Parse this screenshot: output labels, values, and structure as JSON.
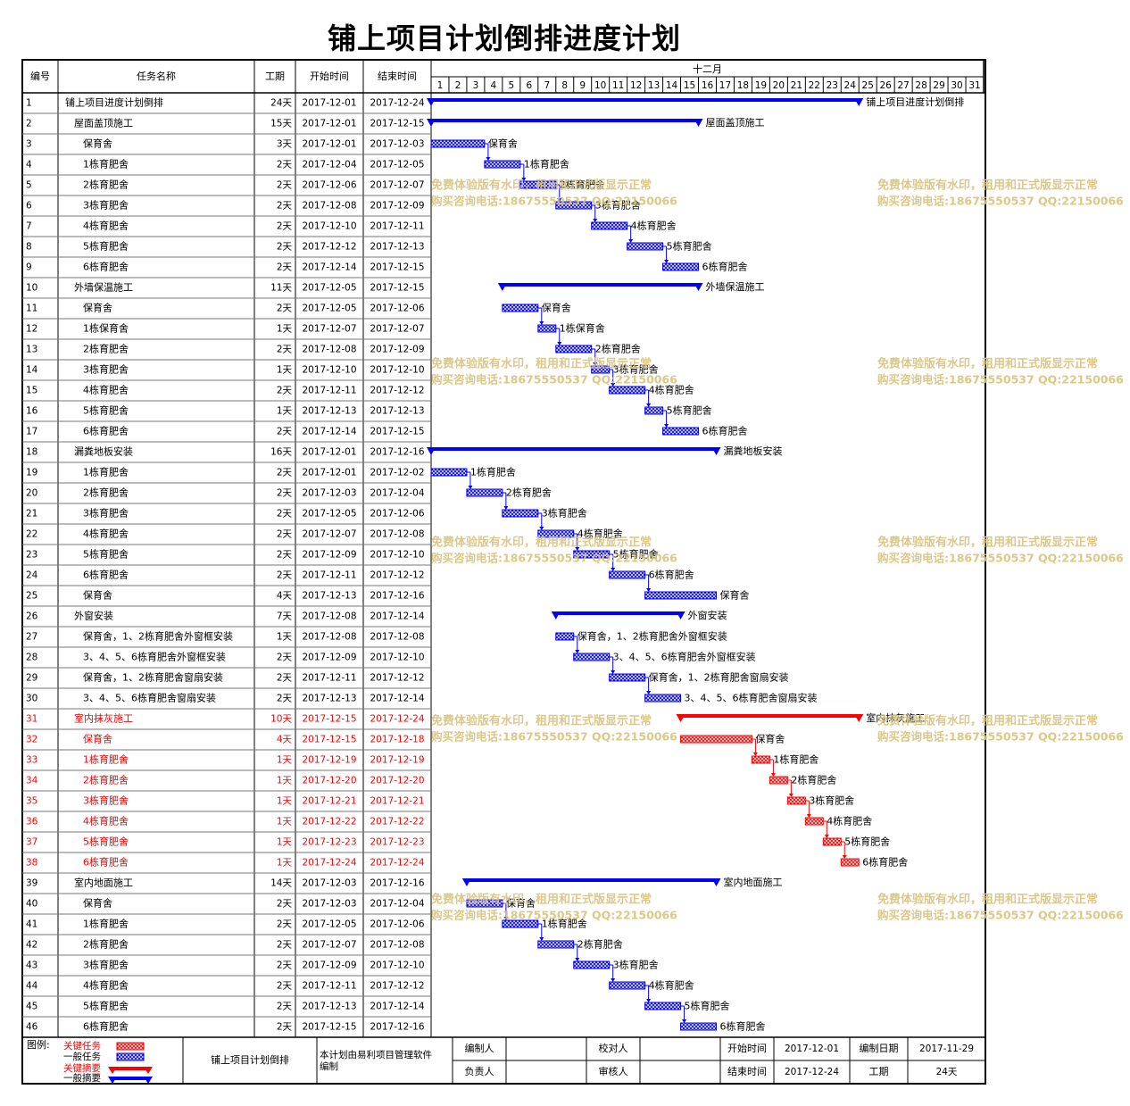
{
  "title": "铺上项目计划倒排进度计划",
  "columns": {
    "id": "编号",
    "name": "任务名称",
    "dur": "工期",
    "start": "开始时间",
    "end": "结束时间"
  },
  "month": "十二月",
  "days": [
    "1",
    "2",
    "3",
    "4",
    "5",
    "6",
    "7",
    "8",
    "9",
    "10",
    "11",
    "12",
    "13",
    "14",
    "15",
    "16",
    "17",
    "18",
    "19",
    "20",
    "21",
    "22",
    "23",
    "24",
    "25",
    "26",
    "27",
    "28",
    "29",
    "30",
    "31"
  ],
  "colors": {
    "normal": "#0000ff",
    "critical": "#ff0000",
    "text_red": "#ff0000",
    "watermark": "#d9c27a"
  },
  "watermark": {
    "line1": "免费体验版有水印，租用和正式版显示正常",
    "line2": "购买咨询电话:18675550537 QQ:22150066"
  },
  "chart_data": {
    "type": "gantt",
    "tasks": [
      {
        "id": "1",
        "name": "铺上项目进度计划倒排",
        "indent": 0,
        "dur": "24天",
        "start": "2017-12-01",
        "end": "2017-12-24",
        "summary": true,
        "critical": false,
        "label": "铺上项目进度计划倒排"
      },
      {
        "id": "2",
        "name": "屋面盖顶施工",
        "indent": 1,
        "dur": "15天",
        "start": "2017-12-01",
        "end": "2017-12-15",
        "summary": true,
        "critical": false,
        "label": "屋面盖顶施工"
      },
      {
        "id": "3",
        "name": "保育舍",
        "indent": 2,
        "dur": "3天",
        "start": "2017-12-01",
        "end": "2017-12-03",
        "summary": false,
        "critical": false,
        "label": "保育舍"
      },
      {
        "id": "4",
        "name": "1栋育肥舍",
        "indent": 2,
        "dur": "2天",
        "start": "2017-12-04",
        "end": "2017-12-05",
        "summary": false,
        "critical": false,
        "label": "1栋育肥舍"
      },
      {
        "id": "5",
        "name": "2栋育肥舍",
        "indent": 2,
        "dur": "2天",
        "start": "2017-12-06",
        "end": "2017-12-07",
        "summary": false,
        "critical": false,
        "label": "2栋育肥舍"
      },
      {
        "id": "6",
        "name": "3栋育肥舍",
        "indent": 2,
        "dur": "2天",
        "start": "2017-12-08",
        "end": "2017-12-09",
        "summary": false,
        "critical": false,
        "label": "3栋育肥舍"
      },
      {
        "id": "7",
        "name": "4栋育肥舍",
        "indent": 2,
        "dur": "2天",
        "start": "2017-12-10",
        "end": "2017-12-11",
        "summary": false,
        "critical": false,
        "label": "4栋育肥舍"
      },
      {
        "id": "8",
        "name": "5栋育肥舍",
        "indent": 2,
        "dur": "2天",
        "start": "2017-12-12",
        "end": "2017-12-13",
        "summary": false,
        "critical": false,
        "label": "5栋育肥舍"
      },
      {
        "id": "9",
        "name": "6栋育肥舍",
        "indent": 2,
        "dur": "2天",
        "start": "2017-12-14",
        "end": "2017-12-15",
        "summary": false,
        "critical": false,
        "label": "6栋育肥舍"
      },
      {
        "id": "10",
        "name": "外墙保温施工",
        "indent": 1,
        "dur": "11天",
        "start": "2017-12-05",
        "end": "2017-12-15",
        "summary": true,
        "critical": false,
        "label": "外墙保温施工"
      },
      {
        "id": "11",
        "name": "保育舍",
        "indent": 2,
        "dur": "2天",
        "start": "2017-12-05",
        "end": "2017-12-06",
        "summary": false,
        "critical": false,
        "label": "保育舍"
      },
      {
        "id": "12",
        "name": "1栋保育舍",
        "indent": 2,
        "dur": "1天",
        "start": "2017-12-07",
        "end": "2017-12-07",
        "summary": false,
        "critical": false,
        "label": "1栋保育舍"
      },
      {
        "id": "13",
        "name": "2栋育肥舍",
        "indent": 2,
        "dur": "2天",
        "start": "2017-12-08",
        "end": "2017-12-09",
        "summary": false,
        "critical": false,
        "label": "2栋育肥舍"
      },
      {
        "id": "14",
        "name": "3栋育肥舍",
        "indent": 2,
        "dur": "1天",
        "start": "2017-12-10",
        "end": "2017-12-10",
        "summary": false,
        "critical": false,
        "label": "3栋育肥舍"
      },
      {
        "id": "15",
        "name": "4栋育肥舍",
        "indent": 2,
        "dur": "2天",
        "start": "2017-12-11",
        "end": "2017-12-12",
        "summary": false,
        "critical": false,
        "label": "4栋育肥舍"
      },
      {
        "id": "16",
        "name": "5栋育肥舍",
        "indent": 2,
        "dur": "1天",
        "start": "2017-12-13",
        "end": "2017-12-13",
        "summary": false,
        "critical": false,
        "label": "5栋育肥舍"
      },
      {
        "id": "17",
        "name": "6栋育肥舍",
        "indent": 2,
        "dur": "2天",
        "start": "2017-12-14",
        "end": "2017-12-15",
        "summary": false,
        "critical": false,
        "label": "6栋育肥舍"
      },
      {
        "id": "18",
        "name": "漏粪地板安装",
        "indent": 1,
        "dur": "16天",
        "start": "2017-12-01",
        "end": "2017-12-16",
        "summary": true,
        "critical": false,
        "label": "漏粪地板安装"
      },
      {
        "id": "19",
        "name": "1栋育肥舍",
        "indent": 2,
        "dur": "2天",
        "start": "2017-12-01",
        "end": "2017-12-02",
        "summary": false,
        "critical": false,
        "label": "1栋育肥舍"
      },
      {
        "id": "20",
        "name": "2栋育肥舍",
        "indent": 2,
        "dur": "2天",
        "start": "2017-12-03",
        "end": "2017-12-04",
        "summary": false,
        "critical": false,
        "label": "2栋育肥舍"
      },
      {
        "id": "21",
        "name": "3栋育肥舍",
        "indent": 2,
        "dur": "2天",
        "start": "2017-12-05",
        "end": "2017-12-06",
        "summary": false,
        "critical": false,
        "label": "3栋育肥舍"
      },
      {
        "id": "22",
        "name": "4栋育肥舍",
        "indent": 2,
        "dur": "2天",
        "start": "2017-12-07",
        "end": "2017-12-08",
        "summary": false,
        "critical": false,
        "label": "4栋育肥舍"
      },
      {
        "id": "23",
        "name": "5栋育肥舍",
        "indent": 2,
        "dur": "2天",
        "start": "2017-12-09",
        "end": "2017-12-10",
        "summary": false,
        "critical": false,
        "label": "5栋育肥舍"
      },
      {
        "id": "24",
        "name": "6栋育肥舍",
        "indent": 2,
        "dur": "2天",
        "start": "2017-12-11",
        "end": "2017-12-12",
        "summary": false,
        "critical": false,
        "label": "6栋育肥舍"
      },
      {
        "id": "25",
        "name": "保育舍",
        "indent": 2,
        "dur": "4天",
        "start": "2017-12-13",
        "end": "2017-12-16",
        "summary": false,
        "critical": false,
        "label": "保育舍"
      },
      {
        "id": "26",
        "name": "外窗安装",
        "indent": 1,
        "dur": "7天",
        "start": "2017-12-08",
        "end": "2017-12-14",
        "summary": true,
        "critical": false,
        "label": "外窗安装"
      },
      {
        "id": "27",
        "name": "保育舍，1、2栋育肥舍外窗框安装",
        "indent": 2,
        "dur": "1天",
        "start": "2017-12-08",
        "end": "2017-12-08",
        "summary": false,
        "critical": false,
        "label": "保育舍，1、2栋育肥舍外窗框安装"
      },
      {
        "id": "28",
        "name": "3、4、5、6栋育肥舍外窗框安装",
        "indent": 2,
        "dur": "2天",
        "start": "2017-12-09",
        "end": "2017-12-10",
        "summary": false,
        "critical": false,
        "label": "3、4、5、6栋育肥舍外窗框安装"
      },
      {
        "id": "29",
        "name": "保育舍，1、2栋育肥舍窗扇安装",
        "indent": 2,
        "dur": "2天",
        "start": "2017-12-11",
        "end": "2017-12-12",
        "summary": false,
        "critical": false,
        "label": "保育舍，1、2栋育肥舍窗扇安装"
      },
      {
        "id": "30",
        "name": "3、4、5、6栋育肥舍窗扇安装",
        "indent": 2,
        "dur": "2天",
        "start": "2017-12-13",
        "end": "2017-12-14",
        "summary": false,
        "critical": false,
        "label": "3、4、5、6栋育肥舍窗扇安装"
      },
      {
        "id": "31",
        "name": "室内抹灰施工",
        "indent": 1,
        "dur": "10天",
        "start": "2017-12-15",
        "end": "2017-12-24",
        "summary": true,
        "critical": true,
        "label": "室内抹灰施工"
      },
      {
        "id": "32",
        "name": "保育舍",
        "indent": 2,
        "dur": "4天",
        "start": "2017-12-15",
        "end": "2017-12-18",
        "summary": false,
        "critical": true,
        "label": "保育舍"
      },
      {
        "id": "33",
        "name": "1栋育肥舍",
        "indent": 2,
        "dur": "1天",
        "start": "2017-12-19",
        "end": "2017-12-19",
        "summary": false,
        "critical": true,
        "label": "1栋育肥舍"
      },
      {
        "id": "34",
        "name": "2栋育肥舍",
        "indent": 2,
        "dur": "1天",
        "start": "2017-12-20",
        "end": "2017-12-20",
        "summary": false,
        "critical": true,
        "label": "2栋育肥舍"
      },
      {
        "id": "35",
        "name": "3栋育肥舍",
        "indent": 2,
        "dur": "1天",
        "start": "2017-12-21",
        "end": "2017-12-21",
        "summary": false,
        "critical": true,
        "label": "3栋育肥舍"
      },
      {
        "id": "36",
        "name": "4栋育肥舍",
        "indent": 2,
        "dur": "1天",
        "start": "2017-12-22",
        "end": "2017-12-22",
        "summary": false,
        "critical": true,
        "label": "4栋育肥舍"
      },
      {
        "id": "37",
        "name": "5栋育肥舍",
        "indent": 2,
        "dur": "1天",
        "start": "2017-12-23",
        "end": "2017-12-23",
        "summary": false,
        "critical": true,
        "label": "5栋育肥舍"
      },
      {
        "id": "38",
        "name": "6栋育肥舍",
        "indent": 2,
        "dur": "1天",
        "start": "2017-12-24",
        "end": "2017-12-24",
        "summary": false,
        "critical": true,
        "label": "6栋育肥舍"
      },
      {
        "id": "39",
        "name": "室内地面施工",
        "indent": 1,
        "dur": "14天",
        "start": "2017-12-03",
        "end": "2017-12-16",
        "summary": true,
        "critical": false,
        "label": "室内地面施工"
      },
      {
        "id": "40",
        "name": "保育舍",
        "indent": 2,
        "dur": "2天",
        "start": "2017-12-03",
        "end": "2017-12-04",
        "summary": false,
        "critical": false,
        "label": "保育舍"
      },
      {
        "id": "41",
        "name": "1栋育肥舍",
        "indent": 2,
        "dur": "2天",
        "start": "2017-12-05",
        "end": "2017-12-06",
        "summary": false,
        "critical": false,
        "label": "1栋育肥舍"
      },
      {
        "id": "42",
        "name": "2栋育肥舍",
        "indent": 2,
        "dur": "2天",
        "start": "2017-12-07",
        "end": "2017-12-08",
        "summary": false,
        "critical": false,
        "label": "2栋育肥舍"
      },
      {
        "id": "43",
        "name": "3栋育肥舍",
        "indent": 2,
        "dur": "2天",
        "start": "2017-12-09",
        "end": "2017-12-10",
        "summary": false,
        "critical": false,
        "label": "3栋育肥舍"
      },
      {
        "id": "44",
        "name": "4栋育肥舍",
        "indent": 2,
        "dur": "2天",
        "start": "2017-12-11",
        "end": "2017-12-12",
        "summary": false,
        "critical": false,
        "label": "4栋育肥舍"
      },
      {
        "id": "45",
        "name": "5栋育肥舍",
        "indent": 2,
        "dur": "2天",
        "start": "2017-12-13",
        "end": "2017-12-14",
        "summary": false,
        "critical": false,
        "label": "5栋育肥舍"
      },
      {
        "id": "46",
        "name": "6栋育肥舍",
        "indent": 2,
        "dur": "2天",
        "start": "2017-12-15",
        "end": "2017-12-16",
        "summary": false,
        "critical": false,
        "label": "6栋育肥舍"
      }
    ]
  },
  "footer": {
    "legend_title": "图例:",
    "legend_items": [
      "关键任务",
      "一般任务",
      "关键摘要",
      "一般摘要"
    ],
    "project_name": "铺上项目计划倒排",
    "note": "本计划由易利项目管理软件编制",
    "compiler_label": "编制人",
    "checker_label": "校对人",
    "owner_label": "负责人",
    "reviewer_label": "审核人",
    "start_label": "开始时间",
    "start_value": "2017-12-01",
    "end_label": "结束时间",
    "end_value": "2017-12-24",
    "compile_date_label": "编制日期",
    "compile_date_value": "2017-11-29",
    "duration_label": "工期",
    "duration_value": "24天"
  }
}
